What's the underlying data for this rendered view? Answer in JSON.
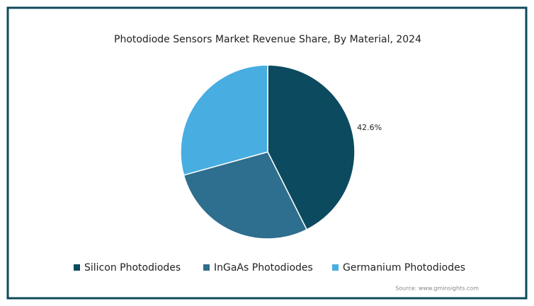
{
  "chart_data": {
    "type": "pie",
    "title": "Photodiode Sensors Market Revenue Share, By Material, 2024",
    "categories": [
      "Silicon Photodiodes",
      "InGaAs Photodiodes",
      "Germanium Photodiodes"
    ],
    "values": [
      42.6,
      28.1,
      29.3
    ],
    "value_labels": [
      "42.6%",
      null,
      null
    ],
    "colors": [
      "#0b4a5f",
      "#2e6e8e",
      "#48ade1"
    ],
    "source": "Source: www.gminsights.com"
  }
}
